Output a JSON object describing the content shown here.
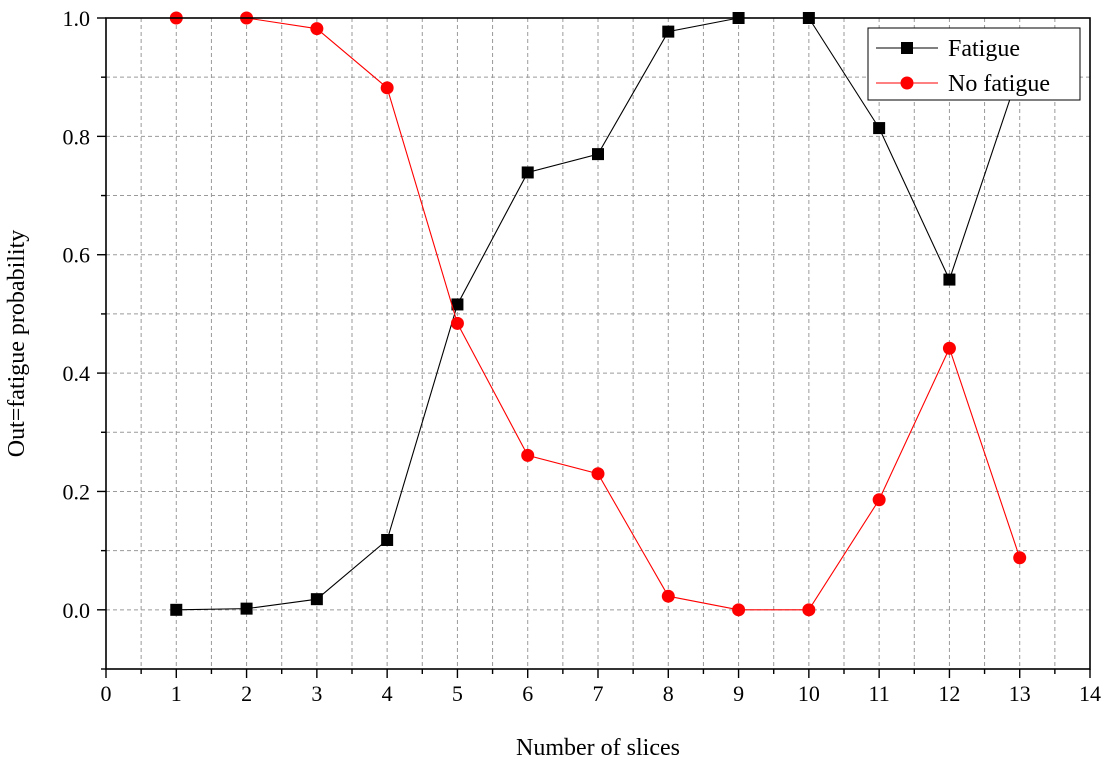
{
  "chart_data": {
    "type": "line",
    "title": "",
    "xlabel": "Number of slices",
    "ylabel": "Out=fatigue probability",
    "xlim": [
      0,
      14
    ],
    "ylim": [
      -0.1,
      1.0
    ],
    "x_ticks": [
      0,
      1,
      2,
      3,
      4,
      5,
      6,
      7,
      8,
      9,
      10,
      11,
      12,
      13,
      14
    ],
    "y_ticks": [
      0.0,
      0.2,
      0.4,
      0.6,
      0.8,
      1.0
    ],
    "y_tick_labels": [
      "0.0",
      "0.2",
      "0.4",
      "0.6",
      "0.8",
      "1.0"
    ],
    "grid": true,
    "legend_position": "top-right",
    "x": [
      1,
      2,
      3,
      4,
      5,
      6,
      7,
      8,
      9,
      10,
      11,
      12,
      13
    ],
    "series": [
      {
        "name": "Fatigue",
        "marker": "square",
        "color": "#000000",
        "values": [
          0.0,
          0.002,
          0.018,
          0.118,
          0.516,
          0.739,
          0.77,
          0.977,
          1.0,
          1.0,
          0.814,
          0.558,
          0.912
        ]
      },
      {
        "name": "No fatigue",
        "marker": "circle",
        "color": "#ff0000",
        "values": [
          1.0,
          1.0,
          0.982,
          0.882,
          0.484,
          0.261,
          0.23,
          0.023,
          0.0,
          0.0,
          0.186,
          0.442,
          0.088
        ]
      }
    ]
  }
}
